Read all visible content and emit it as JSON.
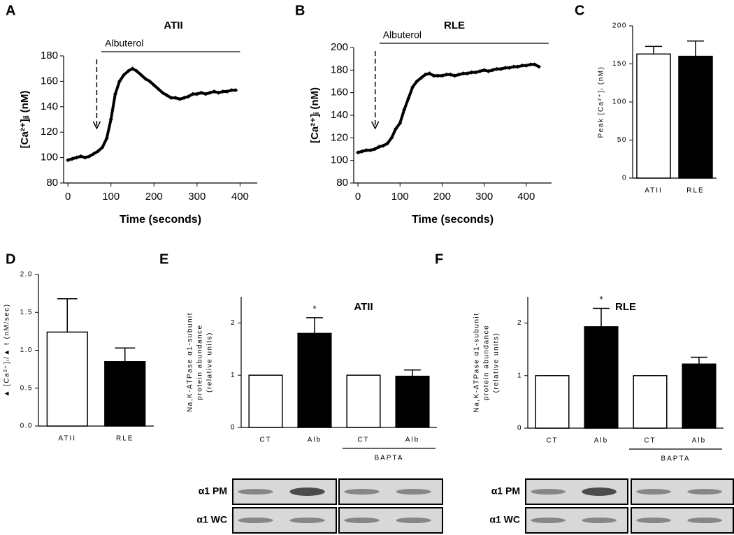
{
  "chart_data": [
    {
      "type": "line",
      "panel": "A",
      "title": "ATII",
      "x_label": "Time (seconds)",
      "y_label": "[Ca²⁺]ⱼᵢ (nM)",
      "x": [
        0,
        10,
        20,
        30,
        40,
        50,
        60,
        70,
        80,
        90,
        100,
        110,
        120,
        130,
        140,
        150,
        160,
        170,
        180,
        190,
        200,
        210,
        220,
        230,
        240,
        250,
        260,
        270,
        280,
        290,
        300,
        310,
        320,
        330,
        340,
        350,
        360,
        370,
        380,
        390
      ],
      "values": [
        98,
        99,
        100,
        101,
        100,
        101,
        103,
        105,
        108,
        115,
        130,
        150,
        160,
        165,
        168,
        170,
        168,
        165,
        162,
        160,
        157,
        154,
        151,
        149,
        147,
        147,
        146,
        147,
        148,
        150,
        150,
        151,
        150,
        151,
        152,
        151,
        152,
        152,
        153,
        153
      ],
      "color": "#000000",
      "xlim": [
        -10,
        440
      ],
      "ylim": [
        80,
        180
      ],
      "xticks": [
        0,
        100,
        200,
        300,
        400
      ],
      "yticks": [
        80,
        100,
        120,
        140,
        160,
        180
      ],
      "event": {
        "label": "Albuterol",
        "x": 67,
        "span": [
          78,
          400
        ]
      }
    },
    {
      "type": "line",
      "panel": "B",
      "title": "RLE",
      "x_label": "Time (seconds)",
      "y_label": "[Ca²⁺]ᵢ (nM)",
      "x": [
        0,
        10,
        20,
        30,
        40,
        50,
        60,
        70,
        80,
        90,
        100,
        110,
        120,
        130,
        140,
        150,
        160,
        170,
        180,
        190,
        200,
        210,
        220,
        230,
        240,
        250,
        260,
        270,
        280,
        290,
        300,
        310,
        320,
        330,
        340,
        350,
        360,
        370,
        380,
        390,
        400,
        410,
        420,
        430
      ],
      "values": [
        107,
        108,
        109,
        109,
        110,
        112,
        113,
        115,
        120,
        128,
        133,
        145,
        155,
        165,
        170,
        173,
        176,
        177,
        175,
        175,
        175,
        176,
        176,
        175,
        176,
        177,
        177,
        178,
        178,
        179,
        180,
        179,
        180,
        181,
        181,
        182,
        182,
        183,
        183,
        184,
        184,
        185,
        185,
        183
      ],
      "color": "#000000",
      "xlim": [
        -10,
        460
      ],
      "ylim": [
        80,
        200
      ],
      "xticks": [
        0,
        100,
        200,
        300,
        400
      ],
      "yticks": [
        80,
        100,
        120,
        140,
        160,
        180,
        200
      ],
      "event": {
        "label": "Albuterol",
        "x": 41,
        "span": [
          51,
          453
        ]
      }
    },
    {
      "type": "bar",
      "panel": "C",
      "y_label": "Peak [Ca²⁺]ᵢ (nM)",
      "categories": [
        "ATII",
        "RLE"
      ],
      "values": [
        163,
        160
      ],
      "errors": [
        10,
        20
      ],
      "colors": [
        "#ffffff",
        "#000000"
      ],
      "ylim": [
        0,
        200
      ],
      "yticks": [
        0,
        50,
        100,
        150,
        200
      ]
    },
    {
      "type": "bar",
      "panel": "D",
      "y_label": "▲ [Ca²⁺]ᵢ/▲ t (nM/sec)",
      "categories": [
        "ATII",
        "RLE"
      ],
      "values": [
        1.24,
        0.85
      ],
      "errors": [
        0.44,
        0.18
      ],
      "colors": [
        "#ffffff",
        "#000000"
      ],
      "ylim": [
        0,
        2
      ],
      "yticks": [
        {
          "value": 0,
          "label": "0.0"
        },
        0.5,
        {
          "value": 1,
          "label": "1.0"
        },
        1.5,
        {
          "value": 2,
          "label": "2.0"
        }
      ]
    },
    {
      "type": "bar",
      "panel": "E",
      "title": "ATII",
      "y_label": [
        "Na,K-ATPase α1-subunit",
        "protein abundance",
        "(relative units)"
      ],
      "categories": [
        "CT",
        "Alb",
        "CT",
        "Alb"
      ],
      "values": [
        1,
        1.8,
        1,
        0.98
      ],
      "errors": [
        0,
        0.3,
        0,
        0.12
      ],
      "colors": [
        "#ffffff",
        "#000000",
        "#ffffff",
        "#000000"
      ],
      "ylim": [
        0,
        2.5
      ],
      "yticks": [
        0,
        1,
        2
      ],
      "annotation": {
        "text": "*",
        "category_index": 1
      },
      "group_label": "BAPTA",
      "blot_rows": [
        "α1 PM",
        "α1 WC"
      ]
    },
    {
      "type": "bar",
      "panel": "F",
      "title": "RLE",
      "y_label": [
        "Na,K-ATPase α1-subunit",
        "protein abundance",
        "(relative units)"
      ],
      "categories": [
        "CT",
        "Alb",
        "CT",
        "Alb"
      ],
      "values": [
        1,
        1.93,
        1,
        1.22
      ],
      "errors": [
        0,
        0.35,
        0,
        0.13
      ],
      "colors": [
        "#ffffff",
        "#000000",
        "#ffffff",
        "#000000"
      ],
      "ylim": [
        0,
        2.5
      ],
      "yticks": [
        0,
        1,
        2
      ],
      "annotation": {
        "text": "*",
        "category_index": 1
      },
      "group_label": "BAPTA",
      "blot_rows": [
        "α1 PM",
        "α1 WC"
      ]
    }
  ]
}
